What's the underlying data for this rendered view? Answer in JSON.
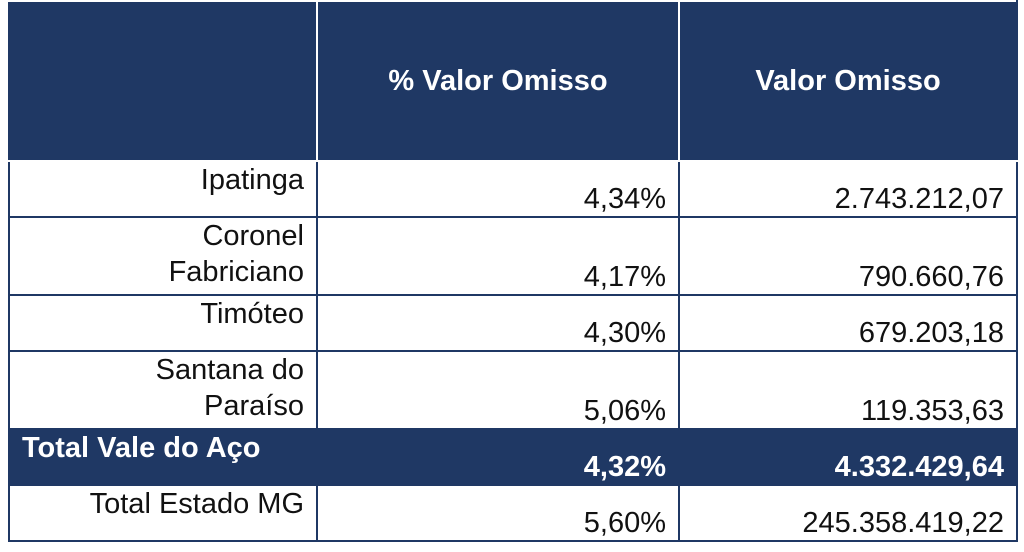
{
  "header": {
    "col1": "",
    "col2": "% Valor Omisso",
    "col3": "Valor Omisso"
  },
  "rows": [
    {
      "name_line1": "Ipatinga",
      "name_line2": "",
      "pct": "4,34%",
      "value": "2.743.212,07"
    },
    {
      "name_line1": "Coronel",
      "name_line2": "Fabriciano",
      "pct": "4,17%",
      "value": "790.660,76"
    },
    {
      "name_line1": "Timóteo",
      "name_line2": "",
      "pct": "4,30%",
      "value": "679.203,18"
    },
    {
      "name_line1": "Santana do",
      "name_line2": "Paraíso",
      "pct": "5,06%",
      "value": "119.353,63"
    }
  ],
  "total_vale": {
    "name": "Total Vale do Aço",
    "pct": "4,32%",
    "value": "4.332.429,64"
  },
  "total_estado": {
    "name": "Total Estado MG",
    "pct": "5,60%",
    "value": "245.358.419,22"
  },
  "colors": {
    "header_bg": "#1f3864",
    "header_text": "#ffffff"
  }
}
